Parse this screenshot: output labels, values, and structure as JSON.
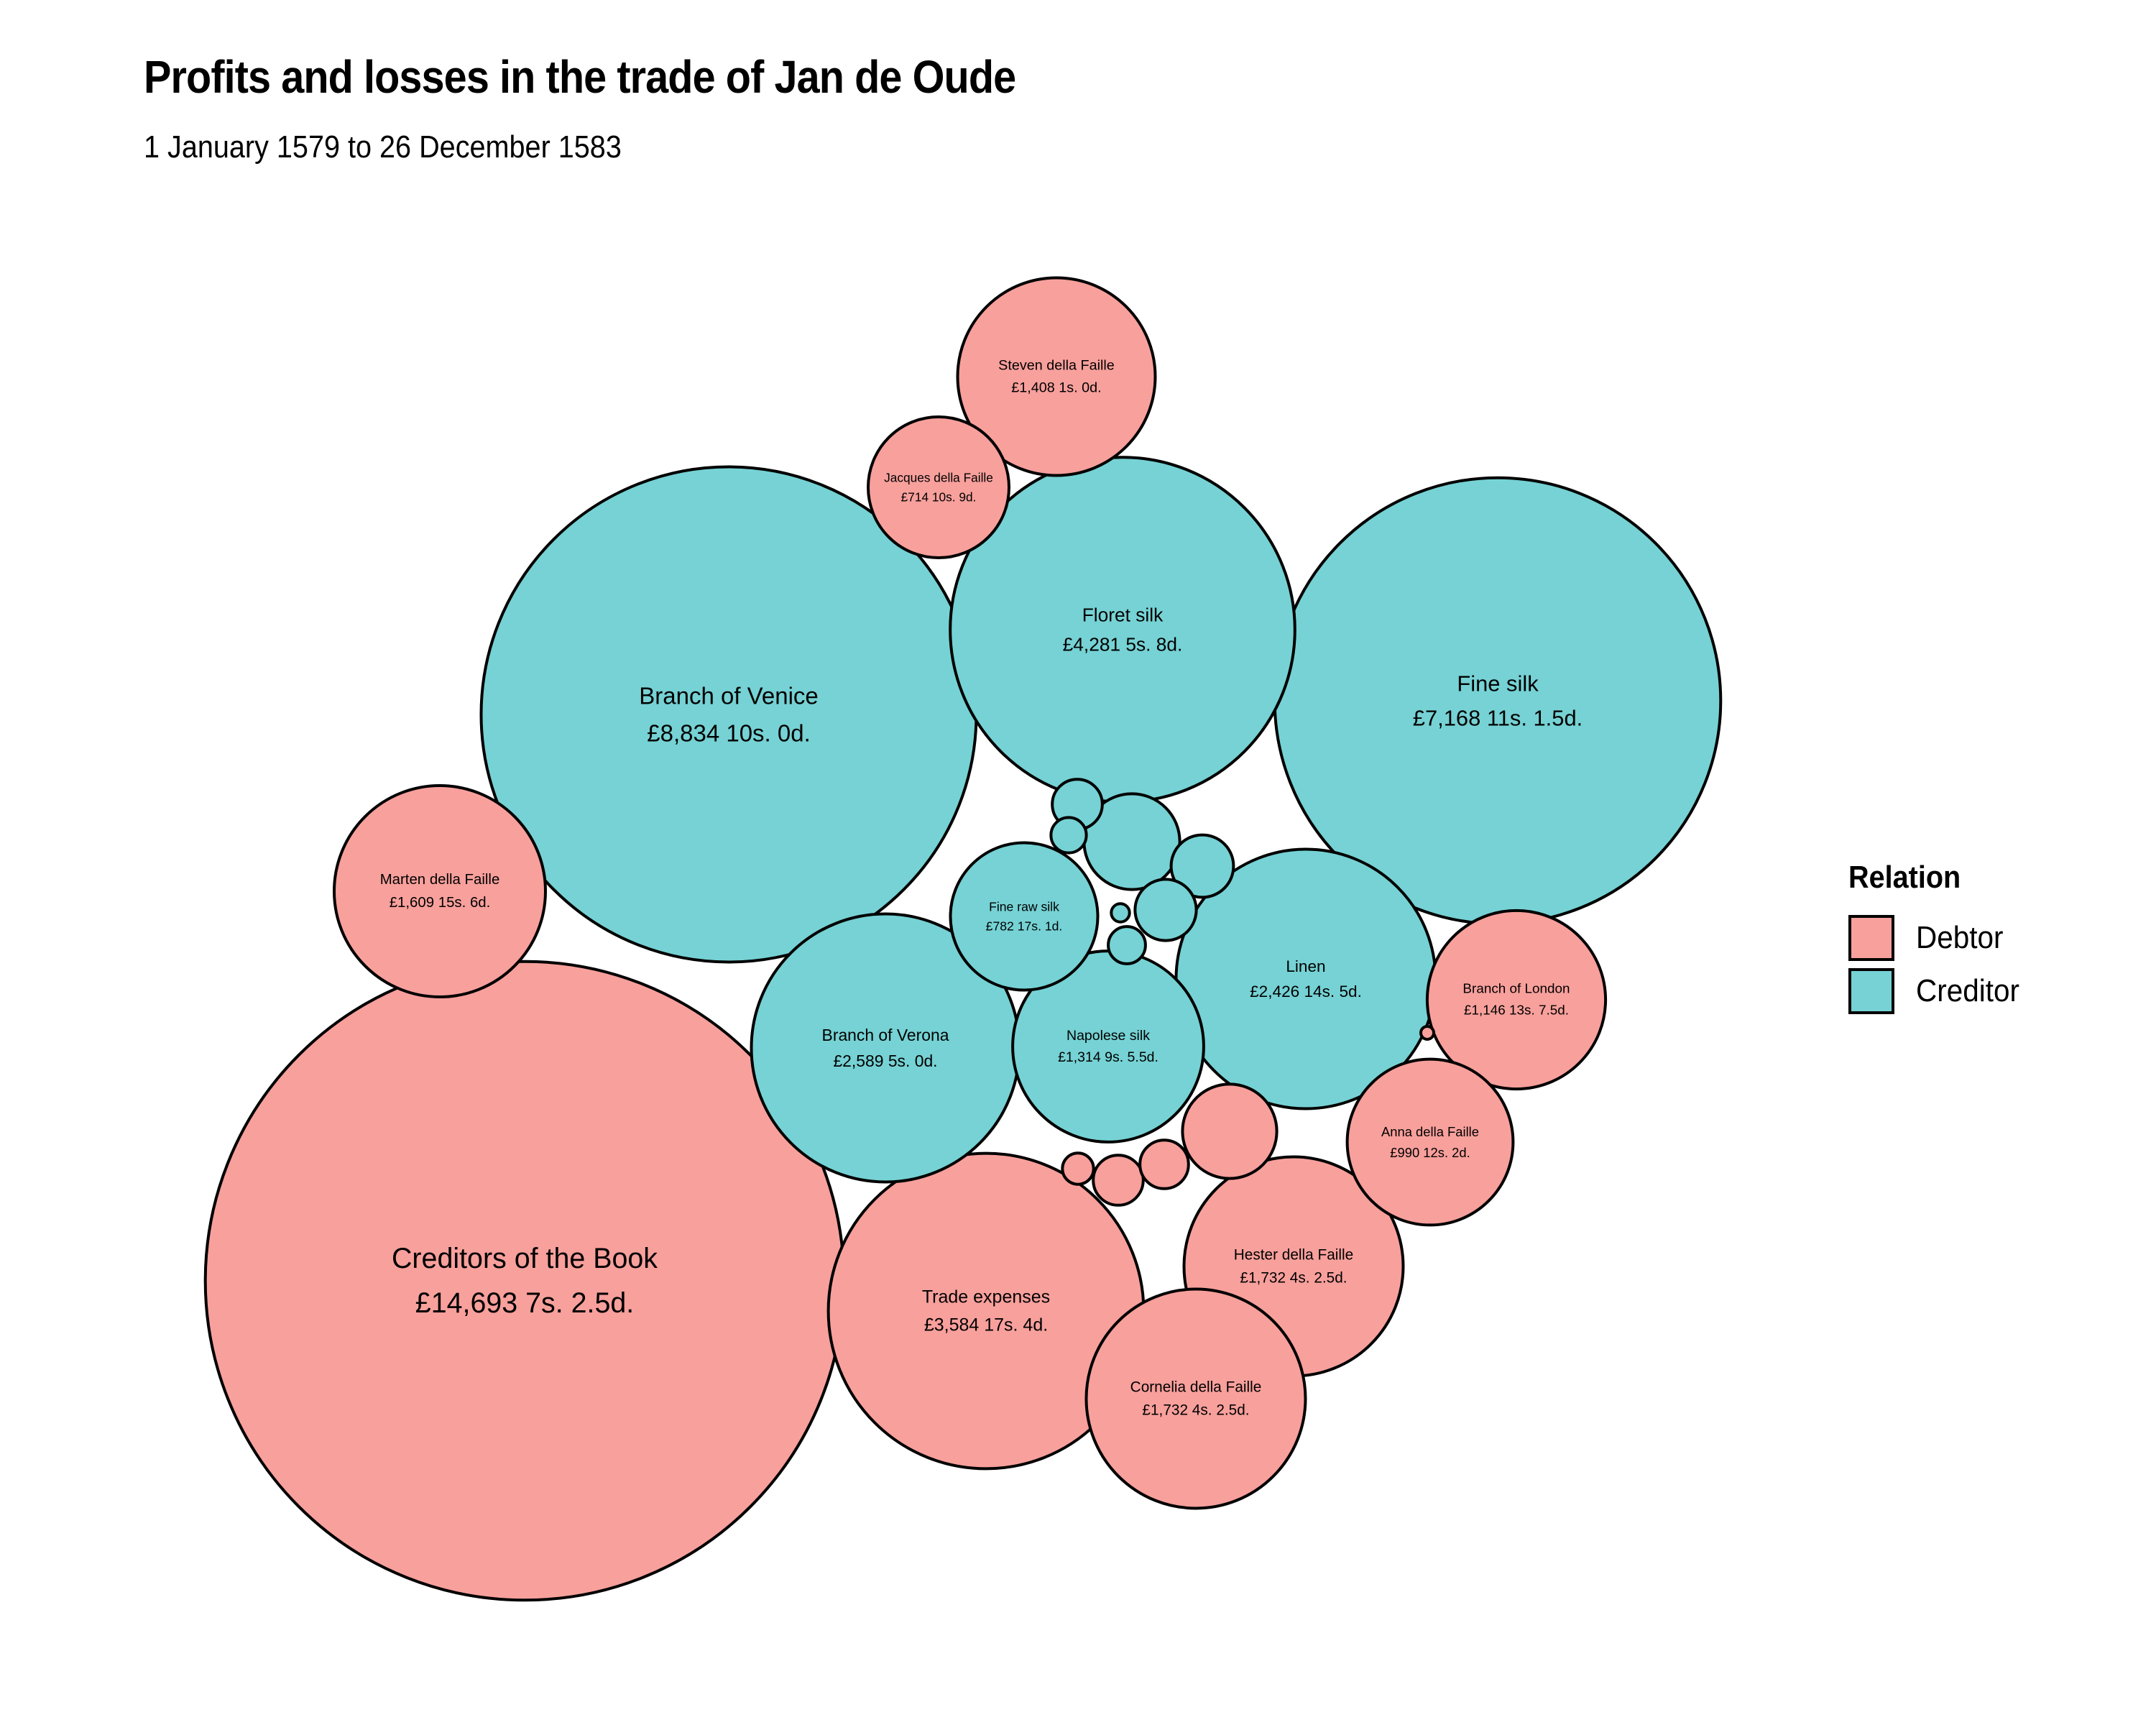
{
  "title": "Profits and losses in the trade of Jan de Oude",
  "subtitle": "1 January 1579 to 26 December 1583",
  "colors": {
    "Debtor": "#f8a09c",
    "Creditor": "#76d2d4",
    "stroke": "#000000"
  },
  "legend": {
    "title": "Relation",
    "items": [
      {
        "label": "Debtor",
        "color": "#f8a09c"
      },
      {
        "label": "Creditor",
        "color": "#76d2d4"
      }
    ]
  },
  "chart_data": {
    "type": "packed-bubble",
    "size_variable": "value in pounds",
    "nodes": [
      {
        "name": "Creditors of the Book",
        "label": "£14,693 7s. 2.5d.",
        "value": 14693.36,
        "relation": "Debtor"
      },
      {
        "name": "Branch of Venice",
        "label": "£8,834 10s. 0d.",
        "value": 8834.5,
        "relation": "Creditor"
      },
      {
        "name": "Fine silk",
        "label": "£7,168 11s. 1.5d.",
        "value": 7168.56,
        "relation": "Creditor"
      },
      {
        "name": "Floret silk",
        "label": "£4,281 5s. 8d.",
        "value": 4281.28,
        "relation": "Creditor"
      },
      {
        "name": "Trade expenses",
        "label": "£3,584 17s. 4d.",
        "value": 3584.87,
        "relation": "Debtor"
      },
      {
        "name": "Branch of Verona",
        "label": "£2,589 5s. 0d.",
        "value": 2589.25,
        "relation": "Creditor"
      },
      {
        "name": "Linen",
        "label": "£2,426 14s. 5d.",
        "value": 2426.72,
        "relation": "Creditor"
      },
      {
        "name": "Hester della Faille",
        "label": "£1,732 4s. 2.5d.",
        "value": 1732.21,
        "relation": "Debtor"
      },
      {
        "name": "Cornelia della Faille",
        "label": "£1,732 4s. 2.5d.",
        "value": 1732.21,
        "relation": "Debtor"
      },
      {
        "name": "Marten della Faille",
        "label": "£1,609 15s. 6d.",
        "value": 1609.78,
        "relation": "Debtor"
      },
      {
        "name": "Steven della Faille",
        "label": "£1,408 1s. 0d.",
        "value": 1408.05,
        "relation": "Debtor"
      },
      {
        "name": "Napolese silk",
        "label": "£1,314 9s. 5.5d.",
        "value": 1314.47,
        "relation": "Creditor"
      },
      {
        "name": "Branch of London",
        "label": "£1,146 13s. 7.5d.",
        "value": 1146.68,
        "relation": "Debtor"
      },
      {
        "name": "Anna della Faille",
        "label": "£990 12s. 2d.",
        "value": 990.61,
        "relation": "Debtor"
      },
      {
        "name": "Fine raw silk",
        "label": "£782 17s. 1d.",
        "value": 782.85,
        "relation": "Creditor"
      },
      {
        "name": "Jacques della Faille",
        "label": "£714 10s. 9d.",
        "value": 714.54,
        "relation": "Debtor"
      },
      {
        "name": "",
        "label": "",
        "value": 330,
        "relation": "Creditor"
      },
      {
        "name": "",
        "label": "",
        "value": 320,
        "relation": "Debtor"
      },
      {
        "name": "",
        "label": "",
        "value": 140,
        "relation": "Creditor"
      },
      {
        "name": "",
        "label": "",
        "value": 135,
        "relation": "Creditor"
      },
      {
        "name": "",
        "label": "",
        "value": 90,
        "relation": "Creditor"
      },
      {
        "name": "",
        "label": "",
        "value": 90,
        "relation": "Debtor"
      },
      {
        "name": "",
        "label": "",
        "value": 85,
        "relation": "Debtor"
      },
      {
        "name": "",
        "label": "",
        "value": 50,
        "relation": "Creditor"
      },
      {
        "name": "",
        "label": "",
        "value": 45,
        "relation": "Creditor"
      },
      {
        "name": "",
        "label": "",
        "value": 35,
        "relation": "Debtor"
      },
      {
        "name": "",
        "label": "",
        "value": 12,
        "relation": "Creditor"
      },
      {
        "name": "",
        "label": "",
        "value": 6,
        "relation": "Debtor"
      }
    ]
  }
}
